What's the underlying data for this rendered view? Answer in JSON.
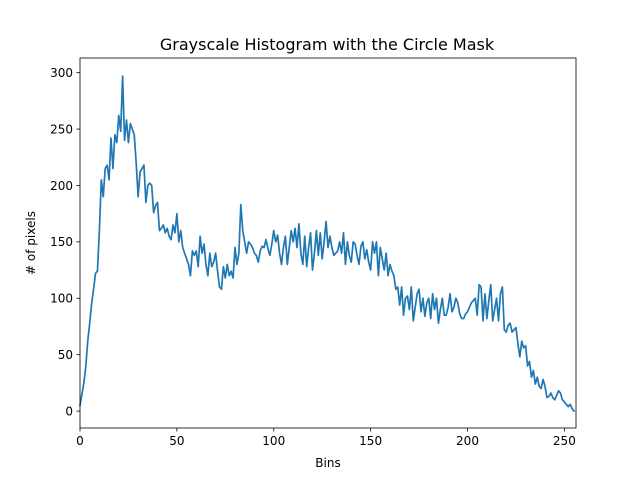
{
  "chart_data": {
    "type": "line",
    "title": "Grayscale Histogram with the Circle Mask",
    "xlabel": "Bins",
    "ylabel": "# of pixels",
    "xlim": [
      0,
      256
    ],
    "ylim": [
      -15,
      313
    ],
    "xticks": [
      0,
      50,
      100,
      150,
      200,
      250
    ],
    "yticks": [
      0,
      50,
      100,
      150,
      200,
      250,
      300
    ],
    "grid": false,
    "legend": "none",
    "line_color": "#1f77b4",
    "series": [
      {
        "x": [
          0,
          1,
          2,
          3,
          4,
          5,
          6,
          7,
          8,
          9,
          10,
          11,
          12,
          13,
          14,
          15,
          16,
          17,
          18,
          19,
          20,
          21,
          22,
          23,
          24,
          25,
          26,
          27,
          28,
          29,
          30,
          31,
          32,
          33,
          34,
          35,
          36,
          37,
          38,
          39,
          40,
          41,
          42,
          43,
          44,
          45,
          46,
          47,
          48,
          49,
          50,
          51,
          52,
          53,
          54,
          55,
          56,
          57,
          58,
          59,
          60,
          61,
          62,
          63,
          64,
          65,
          66,
          67,
          68,
          69,
          70,
          71,
          72,
          73,
          74,
          75,
          76,
          77,
          78,
          79,
          80,
          81,
          82,
          83,
          84,
          85,
          86,
          87,
          88,
          89,
          90,
          91,
          92,
          93,
          94,
          95,
          96,
          97,
          98,
          99,
          100,
          101,
          102,
          103,
          104,
          105,
          106,
          107,
          108,
          109,
          110,
          111,
          112,
          113,
          114,
          115,
          116,
          117,
          118,
          119,
          120,
          121,
          122,
          123,
          124,
          125,
          126,
          127,
          128,
          129,
          130,
          131,
          132,
          133,
          134,
          135,
          136,
          137,
          138,
          139,
          140,
          141,
          142,
          143,
          144,
          145,
          146,
          147,
          148,
          149,
          150,
          151,
          152,
          153,
          154,
          155,
          156,
          157,
          158,
          159,
          160,
          161,
          162,
          163,
          164,
          165,
          166,
          167,
          168,
          169,
          170,
          171,
          172,
          173,
          174,
          175,
          176,
          177,
          178,
          179,
          180,
          181,
          182,
          183,
          184,
          185,
          186,
          187,
          188,
          189,
          190,
          191,
          192,
          193,
          194,
          195,
          196,
          197,
          198,
          199,
          200,
          201,
          202,
          203,
          204,
          205,
          206,
          207,
          208,
          209,
          210,
          211,
          212,
          213,
          214,
          215,
          216,
          217,
          218,
          219,
          220,
          221,
          222,
          223,
          224,
          225,
          226,
          227,
          228,
          229,
          230,
          231,
          232,
          233,
          234,
          235,
          236,
          237,
          238,
          239,
          240,
          241,
          242,
          243,
          244,
          245,
          246,
          247,
          248,
          249,
          250,
          251,
          252,
          253,
          254,
          255
        ],
        "values": [
          5,
          15,
          25,
          40,
          62,
          78,
          95,
          108,
          122,
          124,
          160,
          205,
          190,
          215,
          218,
          205,
          242,
          215,
          245,
          238,
          262,
          248,
          297,
          240,
          258,
          238,
          255,
          250,
          245,
          220,
          190,
          212,
          215,
          218,
          185,
          200,
          202,
          200,
          176,
          182,
          185,
          160,
          162,
          165,
          158,
          162,
          155,
          152,
          165,
          158,
          175,
          150,
          160,
          145,
          140,
          135,
          130,
          120,
          142,
          138,
          142,
          128,
          155,
          140,
          148,
          130,
          120,
          140,
          128,
          132,
          140,
          124,
          110,
          108,
          128,
          118,
          130,
          120,
          124,
          118,
          145,
          130,
          140,
          183,
          160,
          150,
          140,
          150,
          148,
          145,
          140,
          138,
          132,
          142,
          146,
          145,
          152,
          144,
          138,
          148,
          160,
          150,
          156,
          140,
          130,
          145,
          155,
          130,
          145,
          160,
          150,
          162,
          145,
          166,
          140,
          130,
          155,
          128,
          145,
          158,
          125,
          140,
          160,
          138,
          158,
          135,
          150,
          168,
          145,
          155,
          145,
          138,
          140,
          142,
          150,
          140,
          158,
          130,
          150,
          138,
          132,
          150,
          148,
          138,
          130,
          146,
          150,
          135,
          143,
          132,
          125,
          150,
          140,
          150,
          120,
          145,
          135,
          125,
          140,
          120,
          130,
          124,
          120,
          108,
          110,
          94,
          110,
          85,
          100,
          102,
          90,
          110,
          80,
          92,
          104,
          108,
          88,
          100,
          84,
          96,
          100,
          82,
          104,
          90,
          100,
          78,
          90,
          100,
          85,
          85,
          92,
          104,
          88,
          92,
          100,
          96,
          86,
          82,
          82,
          86,
          88,
          92,
          96,
          98,
          100,
          85,
          112,
          110,
          80,
          104,
          82,
          98,
          112,
          80,
          90,
          100,
          80,
          104,
          110,
          72,
          70,
          76,
          78,
          70,
          72,
          74,
          60,
          48,
          62,
          56,
          58,
          40,
          44,
          30,
          36,
          24,
          30,
          22,
          20,
          28,
          22,
          12,
          13,
          16,
          12,
          10,
          14,
          18,
          16,
          10,
          8,
          6,
          4,
          6,
          2,
          0
        ]
      }
    ]
  }
}
